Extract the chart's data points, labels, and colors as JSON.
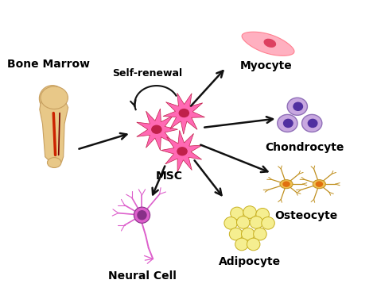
{
  "bg_color": "#ffffff",
  "labels": {
    "bone_marrow": "Bone Marrow",
    "self_renewal": "Self-renewal",
    "msc": "MSC",
    "myocyte": "Myocyte",
    "chondrocyte": "Chondrocyte",
    "osteocyte": "Osteocyte",
    "adipocyte": "Adipocyte",
    "neural_cell": "Neural Cell"
  },
  "label_fontsize": 10,
  "arrow_color": "#111111",
  "msc_color": "#FF69B4",
  "msc_dark": "#C0204A",
  "bone_color": "#E8C888",
  "bone_outline": "#C8A060",
  "bone_marrow_red1": "#CC2200",
  "bone_marrow_red2": "#880000",
  "myocyte_light": "#FFB0C0",
  "myocyte_mid": "#FF8090",
  "myocyte_dark": "#DD4060",
  "chondrocyte_fill": "#C8A8E0",
  "chondrocyte_outline": "#9070B8",
  "chondrocyte_nuc": "#5030A0",
  "osteocyte_fill": "#F0C050",
  "osteocyte_outline": "#C09020",
  "osteocyte_nuc": "#E07010",
  "adipocyte_fill": "#F5EE90",
  "adipocyte_outline": "#C8B020",
  "neural_color": "#DD60CC",
  "neural_dark": "#883088"
}
